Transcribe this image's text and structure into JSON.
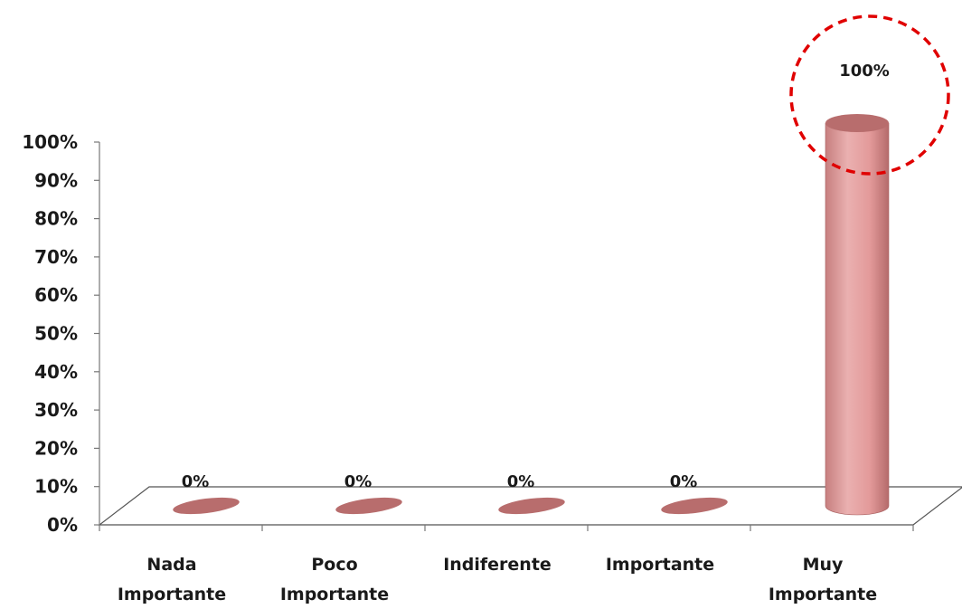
{
  "chart_data": {
    "type": "bar",
    "categories": [
      [
        "Nada",
        "Importante"
      ],
      [
        "Poco",
        "Importante"
      ],
      [
        "Indiferente"
      ],
      [
        "Importante"
      ],
      [
        "Muy",
        "Importante"
      ]
    ],
    "values": [
      0,
      0,
      0,
      0,
      100
    ],
    "value_labels": [
      "0%",
      "0%",
      "0%",
      "0%",
      "100%"
    ],
    "yticks": [
      "0%",
      "10%",
      "20%",
      "30%",
      "40%",
      "50%",
      "60%",
      "70%",
      "80%",
      "90%",
      "100%"
    ],
    "ylim": [
      0,
      100
    ],
    "title": "",
    "xlabel": "",
    "ylabel": "",
    "grid": false,
    "style": "3d-cylinder",
    "highlight": {
      "category_index": 4,
      "shape": "dashed-circle",
      "color": "#e00000"
    },
    "colors": {
      "bar_body": "#e6a0a0",
      "bar_top": "#b86d6d",
      "floor_line": "#555555",
      "axis": "#777777"
    }
  }
}
